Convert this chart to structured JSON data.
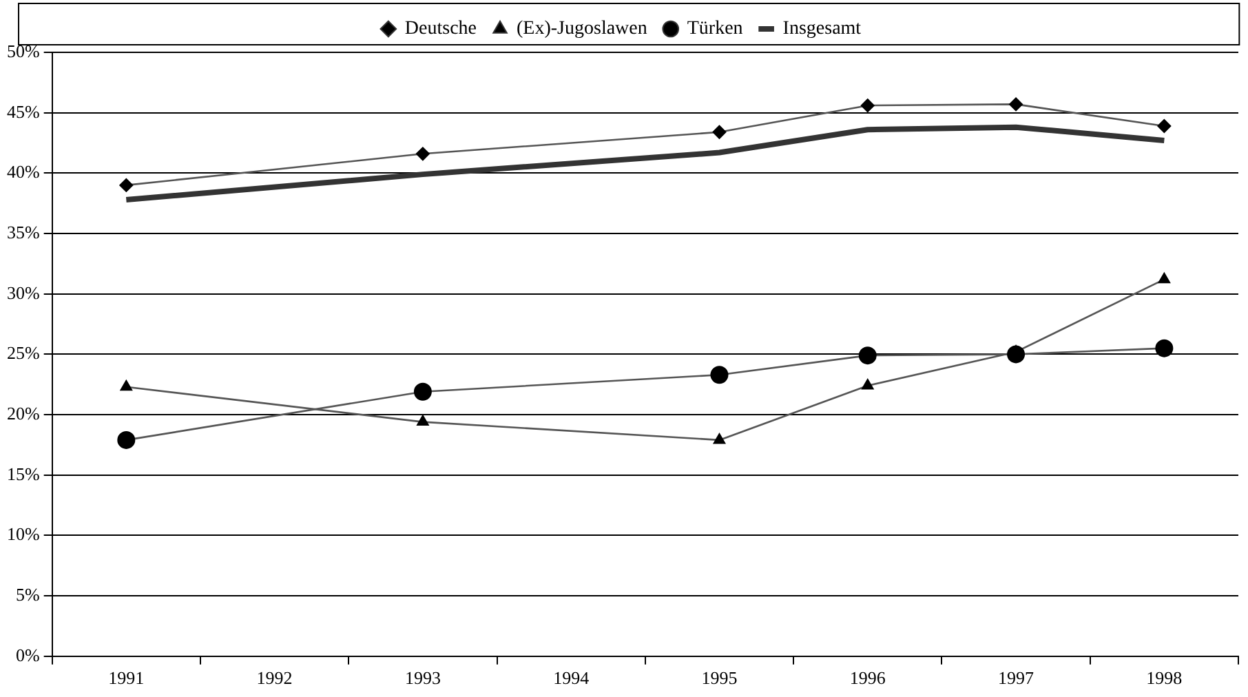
{
  "chart_data": {
    "type": "line",
    "categories": [
      "1991",
      "1992",
      "1993",
      "1994",
      "1995",
      "1996",
      "1997",
      "1998"
    ],
    "series": [
      {
        "name": "Deutsche",
        "color": "#555555",
        "marker": "diamond",
        "values": [
          39.0,
          null,
          41.6,
          null,
          43.4,
          45.6,
          45.7,
          43.9
        ]
      },
      {
        "name": "(Ex)-Jugoslawen",
        "color": "#555555",
        "marker": "triangle",
        "values": [
          22.3,
          null,
          19.4,
          null,
          17.9,
          22.4,
          25.2,
          31.2
        ]
      },
      {
        "name": "Türken",
        "color": "#555555",
        "marker": "circle",
        "values": [
          17.9,
          null,
          21.9,
          null,
          23.3,
          24.9,
          25.0,
          25.5
        ]
      },
      {
        "name": "Insgesamt",
        "color": "#333333",
        "marker": "none",
        "values": [
          37.8,
          null,
          39.9,
          null,
          41.7,
          43.6,
          43.8,
          42.7
        ]
      }
    ],
    "ylim": [
      0,
      50
    ],
    "yticks": [
      {
        "value": 0,
        "label": "0%"
      },
      {
        "value": 5,
        "label": "5%"
      },
      {
        "value": 10,
        "label": "10%"
      },
      {
        "value": 15,
        "label": "15%"
      },
      {
        "value": 20,
        "label": "20%"
      },
      {
        "value": 25,
        "label": "25%"
      },
      {
        "value": 30,
        "label": "30%"
      },
      {
        "value": 35,
        "label": "35%"
      },
      {
        "value": 40,
        "label": "40%"
      },
      {
        "value": 45,
        "label": "45%"
      },
      {
        "value": 50,
        "label": "50%"
      }
    ],
    "grid": "y",
    "legend": "top",
    "line_style": "solid"
  }
}
